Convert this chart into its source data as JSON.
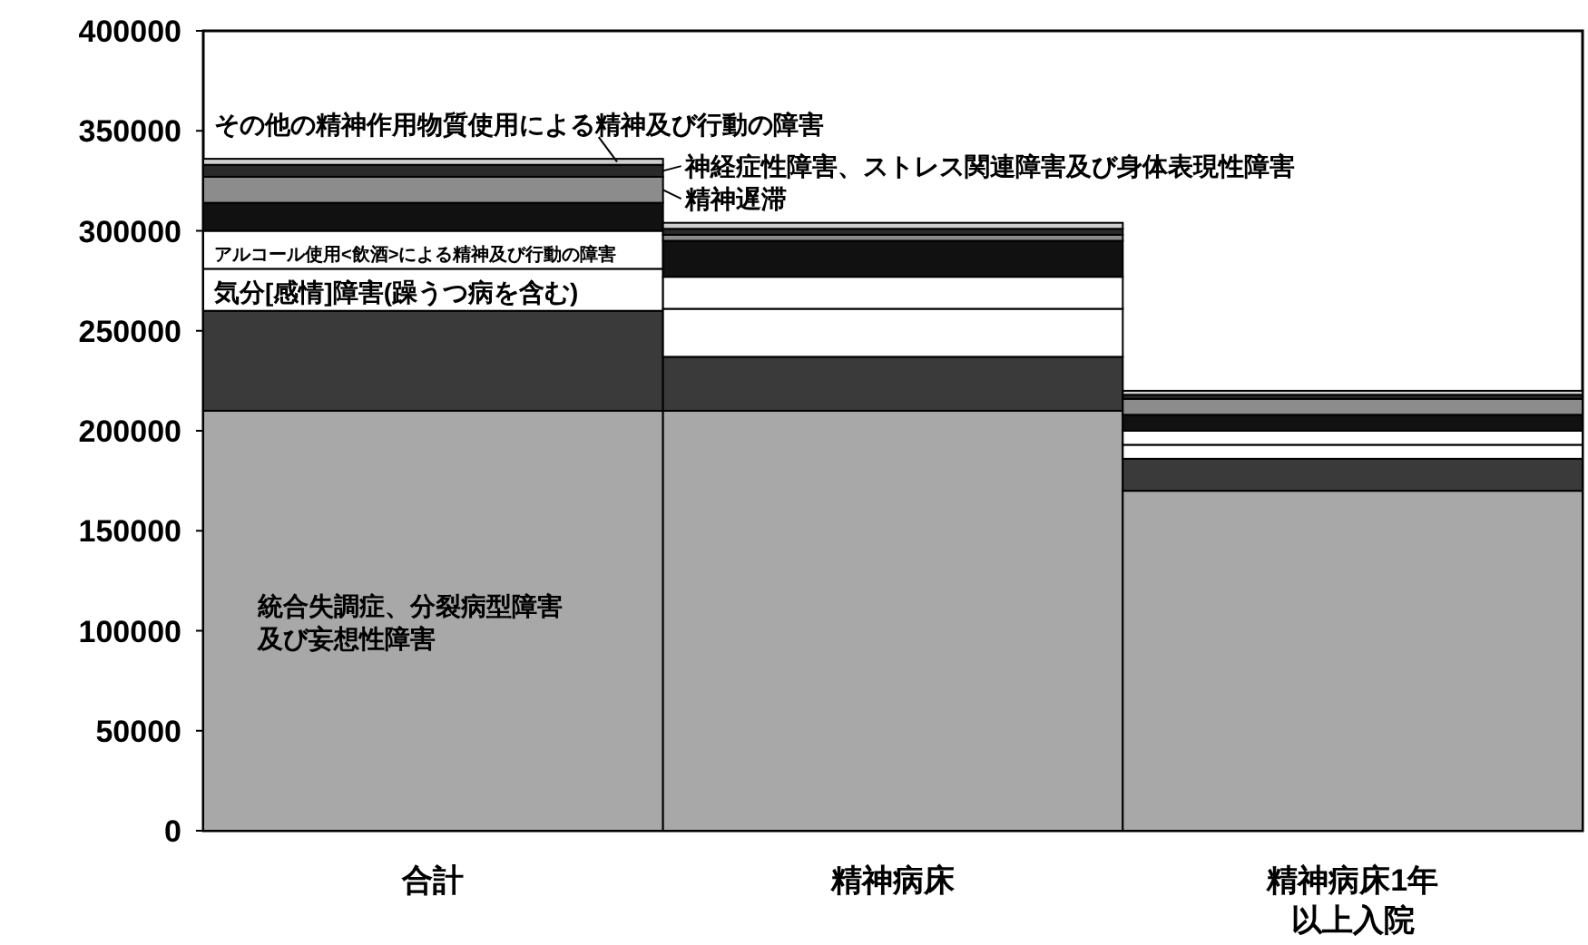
{
  "chart_data": {
    "type": "bar",
    "stacked": true,
    "legend": "top",
    "grid": false,
    "categories": [
      "合計",
      "精神病床",
      "精神病床1年以上入院"
    ],
    "ylim": [
      0,
      400000
    ],
    "yticks": [
      0,
      50000,
      100000,
      150000,
      200000,
      250000,
      300000,
      350000,
      400000
    ],
    "series": [
      {
        "name": "統合失調症、分裂病型障害及び妄想性障害",
        "color": "#a8a8a8",
        "values": [
          210000,
          210000,
          170000
        ]
      },
      {
        "color": "#3a3a3a",
        "values": [
          50000,
          27000,
          16000
        ]
      },
      {
        "name": "気分[感情]障害(躁うつ病を含む)",
        "color": "#ffffff",
        "values": [
          21000,
          24000,
          7000
        ]
      },
      {
        "name": "アルコール使用<飲酒>による精神及び行動の障害",
        "color": "#ffffff",
        "values": [
          19000,
          16000,
          7000
        ]
      },
      {
        "color": "#111111",
        "values": [
          14000,
          18000,
          8000
        ]
      },
      {
        "name": "精神遅滞",
        "color": "#8c8c8c",
        "values": [
          13000,
          3000,
          8000
        ]
      },
      {
        "name": "神経症性障害、ストレス関連障害及び身体表現性障害",
        "color": "#2a2a2a",
        "values": [
          6000,
          3000,
          2000
        ]
      },
      {
        "name": "その他の精神作用物質使用による精神及び行動の障害",
        "color": "#cfcfcf",
        "values": [
          3000,
          3000,
          2000
        ]
      }
    ]
  }
}
